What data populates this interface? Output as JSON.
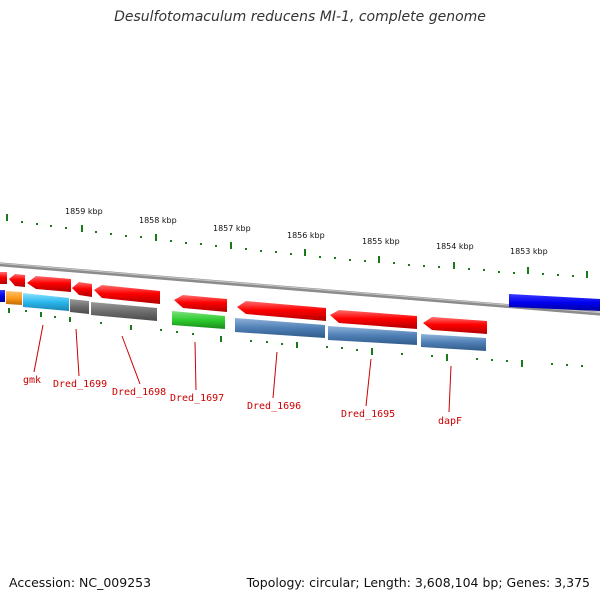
{
  "title": "Desulfotomaculum reducens MI-1, complete genome",
  "footer": {
    "accession": "Accession: NC_009253",
    "info": "Topology: circular; Length: 3,608,104 bp; Genes: 3,375"
  },
  "colors": {
    "backbone": "#8c8c8c",
    "tick": "#1a7a1a",
    "forward_gene": "#ff0000",
    "reverse_gene": "#ff0000",
    "label_line": "#cc0000",
    "label_text": "#cc0000"
  },
  "kbp_ticks": [
    "1859 kbp",
    "1858 kbp",
    "1857 kbp",
    "1856 kbp",
    "1855 kbp",
    "1854 kbp",
    "1853 kbp"
  ],
  "gene_labels": [
    "gmk",
    "Dred_1699",
    "Dred_1698",
    "Dred_1697",
    "Dred_1696",
    "Dred_1695",
    "dapF"
  ]
}
